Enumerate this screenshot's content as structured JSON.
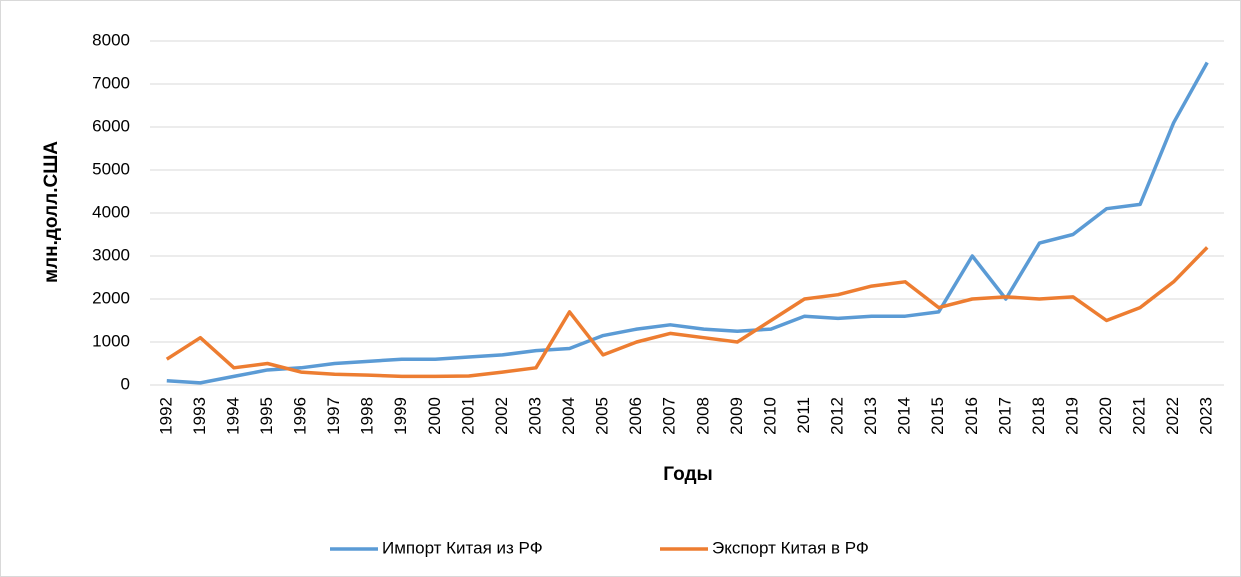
{
  "chart_data": {
    "type": "line",
    "x_label": "Годы",
    "y_label": "млн.долл.США",
    "categories": [
      "1992",
      "1993",
      "1994",
      "1995",
      "1996",
      "1997",
      "1998",
      "1999",
      "2000",
      "2001",
      "2002",
      "2003",
      "2004",
      "2005",
      "2006",
      "2007",
      "2008",
      "2009",
      "2010",
      "2011",
      "2012",
      "2013",
      "2014",
      "2015",
      "2016",
      "2017",
      "2018",
      "2019",
      "2020",
      "2021",
      "2022",
      "2023"
    ],
    "series": [
      {
        "name": "Импорт Китая из РФ",
        "color": "#5b9bd5",
        "values": [
          100,
          50,
          200,
          350,
          400,
          500,
          550,
          600,
          600,
          650,
          700,
          800,
          850,
          1150,
          1300,
          1400,
          1300,
          1250,
          1300,
          1600,
          1550,
          1600,
          1600,
          1700,
          3000,
          2000,
          3300,
          3500,
          4100,
          4200,
          6100,
          7500
        ]
      },
      {
        "name": "Экспорт Китая в РФ",
        "color": "#ed7d31",
        "values": [
          600,
          1100,
          400,
          500,
          300,
          250,
          230,
          200,
          200,
          210,
          300,
          400,
          1700,
          700,
          1000,
          1200,
          1100,
          1000,
          1500,
          2000,
          2100,
          2300,
          2400,
          1800,
          2000,
          2050,
          2000,
          2050,
          1500,
          1800,
          2400,
          3200
        ]
      }
    ],
    "ylim": [
      0,
      8000
    ],
    "yticks": [
      0,
      1000,
      2000,
      3000,
      4000,
      5000,
      6000,
      7000,
      8000
    ],
    "grid": true,
    "legend": "bottom"
  }
}
